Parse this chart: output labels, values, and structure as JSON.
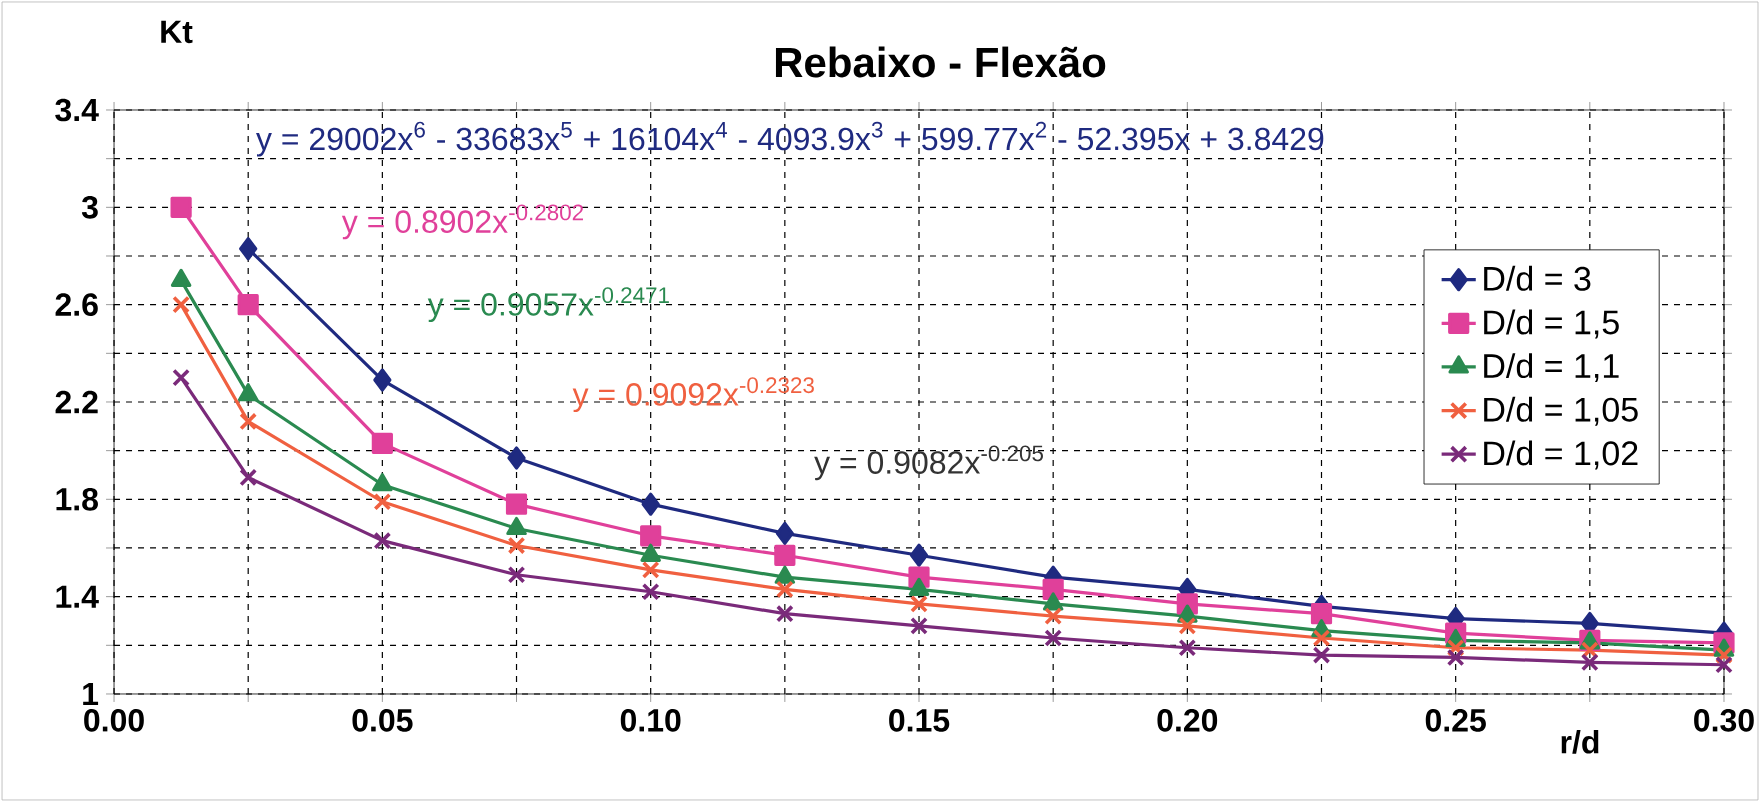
{
  "chart_data": {
    "type": "line",
    "title": "Rebaixo - Flexão",
    "xlabel": "r/d",
    "ylabel": "Kt",
    "x": [
      0.0125,
      0.025,
      0.05,
      0.075,
      0.1,
      0.125,
      0.15,
      0.175,
      0.2,
      0.225,
      0.25,
      0.275,
      0.3
    ],
    "series": [
      {
        "name": "D/d = 3",
        "color": "#1f2a80",
        "marker": "diamond",
        "values": [
          null,
          2.83,
          2.29,
          1.97,
          1.78,
          1.66,
          1.57,
          1.48,
          1.43,
          1.36,
          1.31,
          1.29,
          1.25
        ]
      },
      {
        "name": "D/d = 1,5",
        "color": "#e0409a",
        "marker": "square",
        "values": [
          3.0,
          2.6,
          2.03,
          1.78,
          1.65,
          1.57,
          1.48,
          1.43,
          1.37,
          1.33,
          1.25,
          1.22,
          1.21
        ]
      },
      {
        "name": "D/d = 1,1",
        "color": "#2a8a50",
        "marker": "triangle",
        "values": [
          2.7,
          2.23,
          1.86,
          1.68,
          1.57,
          1.48,
          1.43,
          1.37,
          1.32,
          1.26,
          1.22,
          1.21,
          1.18
        ]
      },
      {
        "name": "D/d = 1,05",
        "color": "#f06040",
        "marker": "cross",
        "values": [
          2.6,
          2.12,
          1.79,
          1.61,
          1.51,
          1.43,
          1.37,
          1.32,
          1.28,
          1.23,
          1.19,
          1.18,
          1.16
        ]
      },
      {
        "name": "D/d = 1,02",
        "color": "#7a2a7a",
        "marker": "cross",
        "values": [
          2.3,
          1.89,
          1.63,
          1.49,
          1.42,
          1.33,
          1.28,
          1.23,
          1.19,
          1.16,
          1.15,
          1.13,
          1.12
        ]
      }
    ],
    "xlim": [
      0,
      0.3
    ],
    "xticks": [
      {
        "value": 0,
        "label": "0.00"
      },
      {
        "value": 0.025,
        "label": null
      },
      {
        "value": 0.05,
        "label": "0.05"
      },
      {
        "value": 0.075,
        "label": null
      },
      {
        "value": 0.1,
        "label": "0.10"
      },
      {
        "value": 0.125,
        "label": null
      },
      {
        "value": 0.15,
        "label": "0.15"
      },
      {
        "value": 0.175,
        "label": null
      },
      {
        "value": 0.2,
        "label": "0.20"
      },
      {
        "value": 0.225,
        "label": null
      },
      {
        "value": 0.25,
        "label": "0.25"
      },
      {
        "value": 0.275,
        "label": null
      },
      {
        "value": 0.3,
        "label": "0.30"
      }
    ],
    "ylim": [
      1,
      3.4
    ],
    "yticks": [
      1,
      {
        "value": 1.2,
        "label": null
      },
      1.4,
      {
        "value": 1.6,
        "label": null
      },
      1.8,
      {
        "value": 2.0,
        "label": null
      },
      2.2,
      {
        "value": 2.4,
        "label": null
      },
      2.6,
      {
        "value": 2.8,
        "label": null
      },
      3,
      {
        "value": 3.2,
        "label": null
      },
      3.4
    ],
    "grid": true,
    "legend": "right",
    "line_style": "solid",
    "annotations": [
      "y = 29002x$^{6}$ - 33683x$^{5}$ + 16104x$^{4}$ - 4093.9x$^{3}$ + 599.77x$^{2}$ - 52.395x + 3.8429",
      "y = 0.8902x$^{-0.2802}$",
      "y = 0.9057x$^{-0.2471}$",
      "y = 0.9092x$^{-0.2323}$",
      "y = 0.9082x$^{-0.205}$"
    ]
  }
}
